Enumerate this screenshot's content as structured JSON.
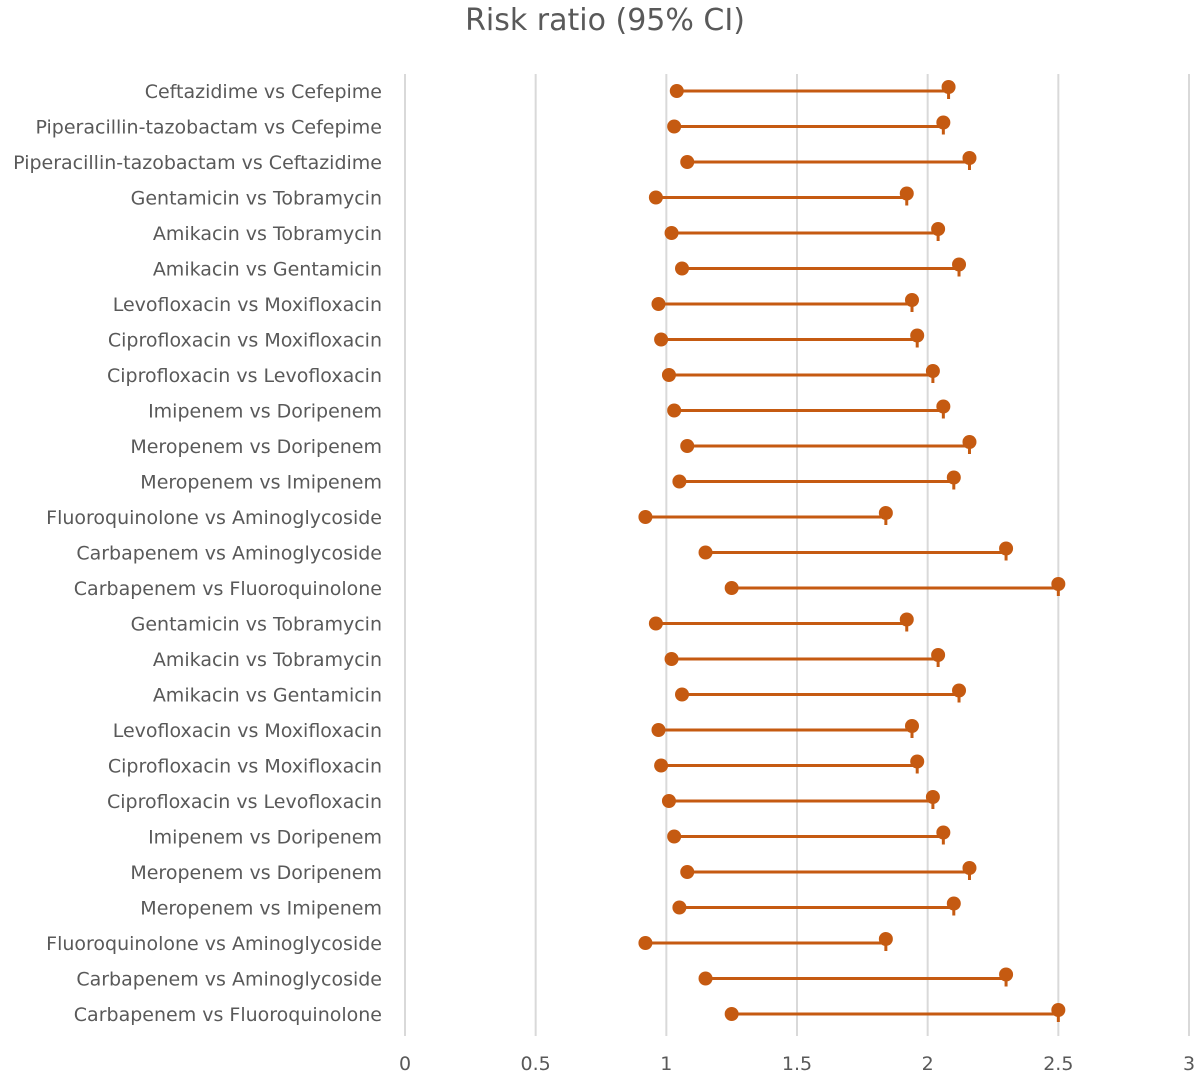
{
  "chart_data": {
    "type": "dot-interval",
    "title": "Risk ratio (95% CI)",
    "xlabel": "",
    "ylabel": "",
    "xlim": [
      0,
      3
    ],
    "xticks": [
      0,
      0.5,
      1,
      1.5,
      2,
      2.5,
      3
    ],
    "xtick_labels": [
      "0",
      "0.5",
      "1",
      "1.5",
      "2",
      "2.5",
      "3"
    ],
    "grid": true,
    "color": "#c55a11",
    "rows": [
      {
        "label": "Ceftazidime vs Cefepime",
        "low": 1.04,
        "high": 2.08
      },
      {
        "label": "Piperacillin-tazobactam vs Cefepime",
        "low": 1.03,
        "high": 2.06
      },
      {
        "label": "Piperacillin-tazobactam vs Ceftazidime",
        "low": 1.08,
        "high": 2.16
      },
      {
        "label": "Gentamicin vs Tobramycin",
        "low": 0.96,
        "high": 1.92
      },
      {
        "label": "Amikacin vs Tobramycin",
        "low": 1.02,
        "high": 2.04
      },
      {
        "label": "Amikacin vs Gentamicin",
        "low": 1.06,
        "high": 2.12
      },
      {
        "label": "Levofloxacin vs Moxifloxacin",
        "low": 0.97,
        "high": 1.94
      },
      {
        "label": "Ciprofloxacin vs Moxifloxacin",
        "low": 0.98,
        "high": 1.96
      },
      {
        "label": "Ciprofloxacin vs Levofloxacin",
        "low": 1.01,
        "high": 2.02
      },
      {
        "label": "Imipenem vs Doripenem",
        "low": 1.03,
        "high": 2.06
      },
      {
        "label": "Meropenem vs Doripenem",
        "low": 1.08,
        "high": 2.16
      },
      {
        "label": "Meropenem vs Imipenem",
        "low": 1.05,
        "high": 2.1
      },
      {
        "label": "Fluoroquinolone vs Aminoglycoside",
        "low": 0.92,
        "high": 1.84
      },
      {
        "label": "Carbapenem vs Aminoglycoside",
        "low": 1.15,
        "high": 2.3
      },
      {
        "label": "Carbapenem vs Fluoroquinolone",
        "low": 1.25,
        "high": 2.5
      },
      {
        "label": "Gentamicin vs Tobramycin",
        "low": 0.96,
        "high": 1.92
      },
      {
        "label": "Amikacin vs Tobramycin",
        "low": 1.02,
        "high": 2.04
      },
      {
        "label": "Amikacin vs Gentamicin",
        "low": 1.06,
        "high": 2.12
      },
      {
        "label": "Levofloxacin vs Moxifloxacin",
        "low": 0.97,
        "high": 1.94
      },
      {
        "label": "Ciprofloxacin vs Moxifloxacin",
        "low": 0.98,
        "high": 1.96
      },
      {
        "label": "Ciprofloxacin vs Levofloxacin",
        "low": 1.01,
        "high": 2.02
      },
      {
        "label": "Imipenem vs Doripenem",
        "low": 1.03,
        "high": 2.06
      },
      {
        "label": "Meropenem vs Doripenem",
        "low": 1.08,
        "high": 2.16
      },
      {
        "label": "Meropenem vs Imipenem",
        "low": 1.05,
        "high": 2.1
      },
      {
        "label": "Fluoroquinolone vs Aminoglycoside",
        "low": 0.92,
        "high": 1.84
      },
      {
        "label": "Carbapenem vs Aminoglycoside",
        "low": 1.15,
        "high": 2.3
      },
      {
        "label": "Carbapenem vs Fluoroquinolone",
        "low": 1.25,
        "high": 2.5
      }
    ]
  }
}
